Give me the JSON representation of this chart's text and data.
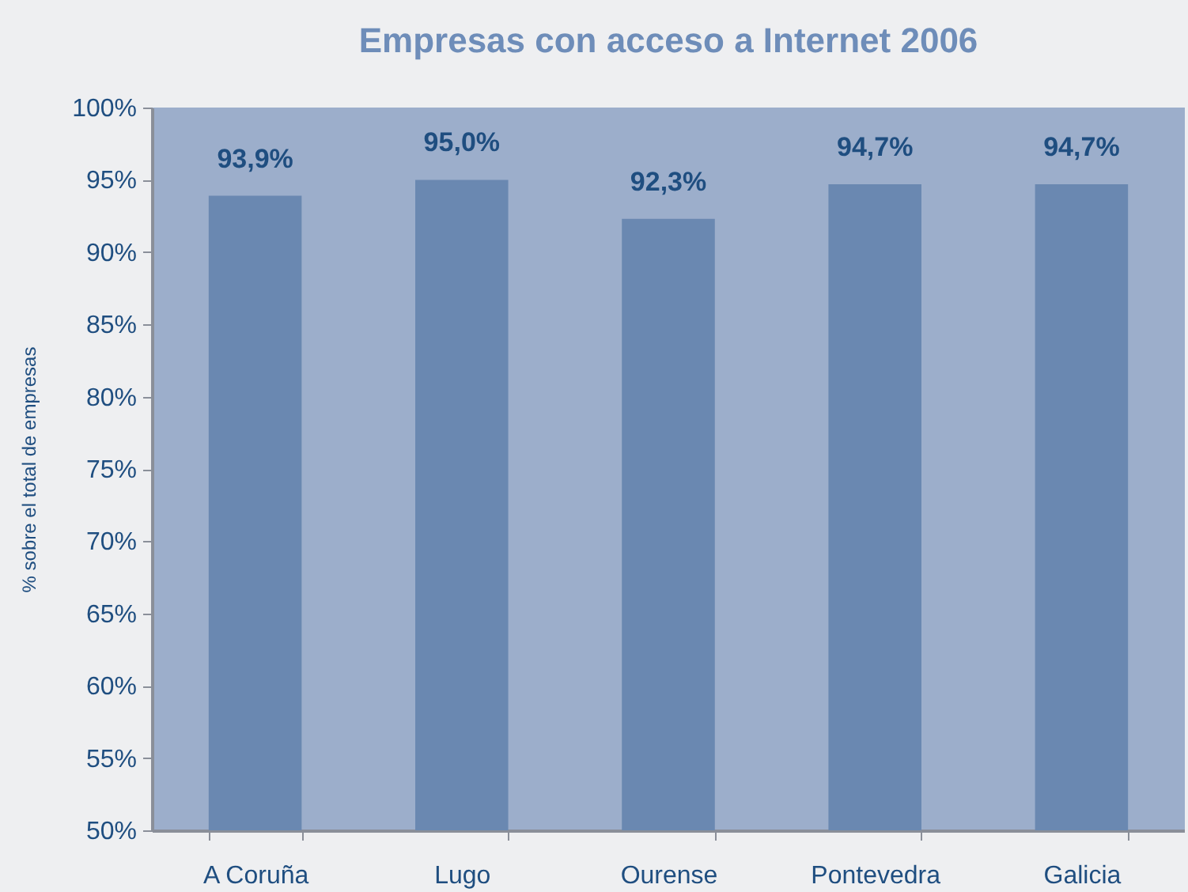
{
  "chart_data": {
    "type": "bar",
    "title": "Empresas con acceso a Internet 2006",
    "ylabel": "% sobre el total de empresas",
    "categories": [
      "A Coruña",
      "Lugo",
      "Ourense",
      "Pontevedra",
      "Galicia"
    ],
    "values": [
      93.9,
      95.0,
      92.3,
      94.7,
      94.7
    ],
    "value_labels": [
      "93,9%",
      "95,0%",
      "92,3%",
      "94,7%",
      "94,7%"
    ],
    "color": "#6a88b1",
    "ylim": [
      50,
      100
    ],
    "yticks": [
      {
        "value": 50,
        "label": "50%"
      },
      {
        "value": 55,
        "label": "55%"
      },
      {
        "value": 60,
        "label": "60%"
      },
      {
        "value": 65,
        "label": "65%"
      },
      {
        "value": 70,
        "label": "70%"
      },
      {
        "value": 75,
        "label": "75%"
      },
      {
        "value": 80,
        "label": "80%"
      },
      {
        "value": 85,
        "label": "85%"
      },
      {
        "value": 90,
        "label": "90%"
      },
      {
        "value": 95,
        "label": "95%"
      },
      {
        "value": 100,
        "label": "100%"
      }
    ],
    "grid": false
  }
}
